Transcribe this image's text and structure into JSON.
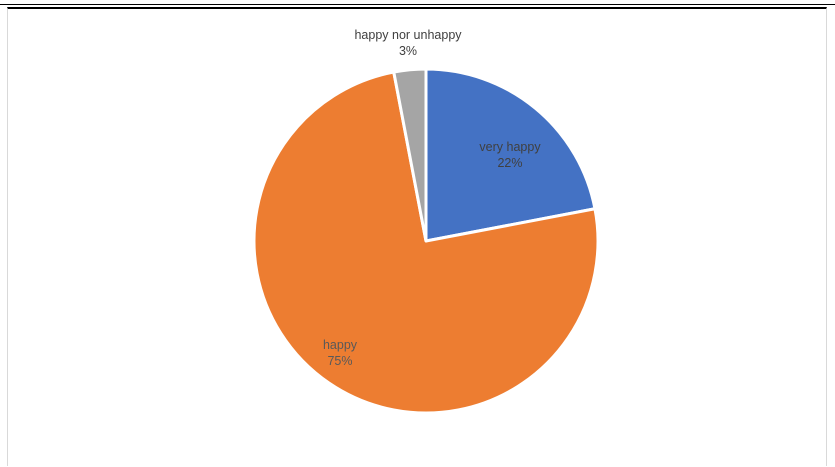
{
  "chart_data": {
    "type": "pie",
    "title": "",
    "start_angle_deg": 0,
    "direction": "clockwise",
    "slices": [
      {
        "label": "very happy",
        "value": 22,
        "value_label": "22%",
        "color": "#4472c4",
        "label_color": "#404040"
      },
      {
        "label": "happy",
        "value": 75,
        "value_label": "75%",
        "color": "#ed7d31",
        "label_color": "#595959"
      },
      {
        "label": "happy nor unhappy",
        "value": 3,
        "value_label": "3%",
        "color": "#a5a5a5",
        "label_color": "#404040"
      }
    ],
    "data_labels": "inside",
    "legend": "none"
  }
}
